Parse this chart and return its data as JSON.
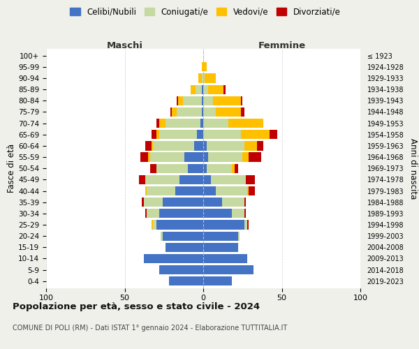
{
  "age_groups": [
    "100+",
    "95-99",
    "90-94",
    "85-89",
    "80-84",
    "75-79",
    "70-74",
    "65-69",
    "60-64",
    "55-59",
    "50-54",
    "45-49",
    "40-44",
    "35-39",
    "30-34",
    "25-29",
    "20-24",
    "15-19",
    "10-14",
    "5-9",
    "0-4"
  ],
  "birth_years": [
    "≤ 1923",
    "1924-1928",
    "1929-1933",
    "1934-1938",
    "1939-1943",
    "1944-1948",
    "1949-1953",
    "1954-1958",
    "1959-1963",
    "1964-1968",
    "1969-1973",
    "1974-1978",
    "1979-1983",
    "1984-1988",
    "1989-1993",
    "1994-1998",
    "1999-2003",
    "2004-2008",
    "2009-2013",
    "2014-2018",
    "2019-2023"
  ],
  "males": {
    "celibi": [
      0,
      0,
      0,
      1,
      1,
      1,
      2,
      4,
      6,
      12,
      10,
      15,
      18,
      26,
      28,
      30,
      26,
      24,
      38,
      28,
      22
    ],
    "coniugati": [
      0,
      0,
      1,
      4,
      12,
      16,
      22,
      24,
      26,
      22,
      20,
      22,
      18,
      12,
      8,
      2,
      1,
      0,
      0,
      0,
      0
    ],
    "vedovi": [
      0,
      1,
      2,
      3,
      3,
      3,
      4,
      2,
      1,
      1,
      0,
      0,
      1,
      0,
      0,
      1,
      0,
      0,
      0,
      0,
      0
    ],
    "divorziati": [
      0,
      0,
      0,
      0,
      1,
      1,
      2,
      3,
      4,
      5,
      4,
      4,
      0,
      1,
      1,
      0,
      0,
      0,
      0,
      0,
      0
    ]
  },
  "females": {
    "nubili": [
      0,
      0,
      0,
      0,
      0,
      0,
      0,
      0,
      2,
      3,
      2,
      5,
      8,
      12,
      18,
      26,
      22,
      22,
      28,
      32,
      18
    ],
    "coniugate": [
      0,
      0,
      1,
      3,
      6,
      8,
      16,
      24,
      24,
      22,
      16,
      22,
      20,
      14,
      8,
      2,
      1,
      0,
      0,
      0,
      0
    ],
    "vedove": [
      0,
      2,
      7,
      10,
      18,
      16,
      22,
      18,
      8,
      4,
      2,
      0,
      1,
      0,
      0,
      0,
      0,
      0,
      0,
      0,
      0
    ],
    "divorziate": [
      0,
      0,
      0,
      1,
      1,
      2,
      0,
      5,
      4,
      8,
      2,
      6,
      4,
      1,
      1,
      1,
      0,
      0,
      0,
      0,
      0
    ]
  },
  "colors": {
    "celibi": "#4472c4",
    "coniugati": "#c5d9a0",
    "vedovi": "#ffc000",
    "divorziati": "#c00000"
  },
  "legend_labels": [
    "Celibi/Nubili",
    "Coniugati/e",
    "Vedovi/e",
    "Divorziati/e"
  ],
  "title_main": "Popolazione per età, sesso e stato civile - 2024",
  "title_sub": "COMUNE DI POLI (RM) - Dati ISTAT 1° gennaio 2024 - Elaborazione TUTTITALIA.IT",
  "xlabel_left": "Maschi",
  "xlabel_right": "Femmine",
  "ylabel_left": "Fasce di età",
  "ylabel_right": "Anni di nascita",
  "xlim": 100,
  "xticks": [
    -100,
    -50,
    0,
    50,
    100
  ],
  "background_color": "#f0f0eb",
  "plot_bg_color": "#ffffff"
}
